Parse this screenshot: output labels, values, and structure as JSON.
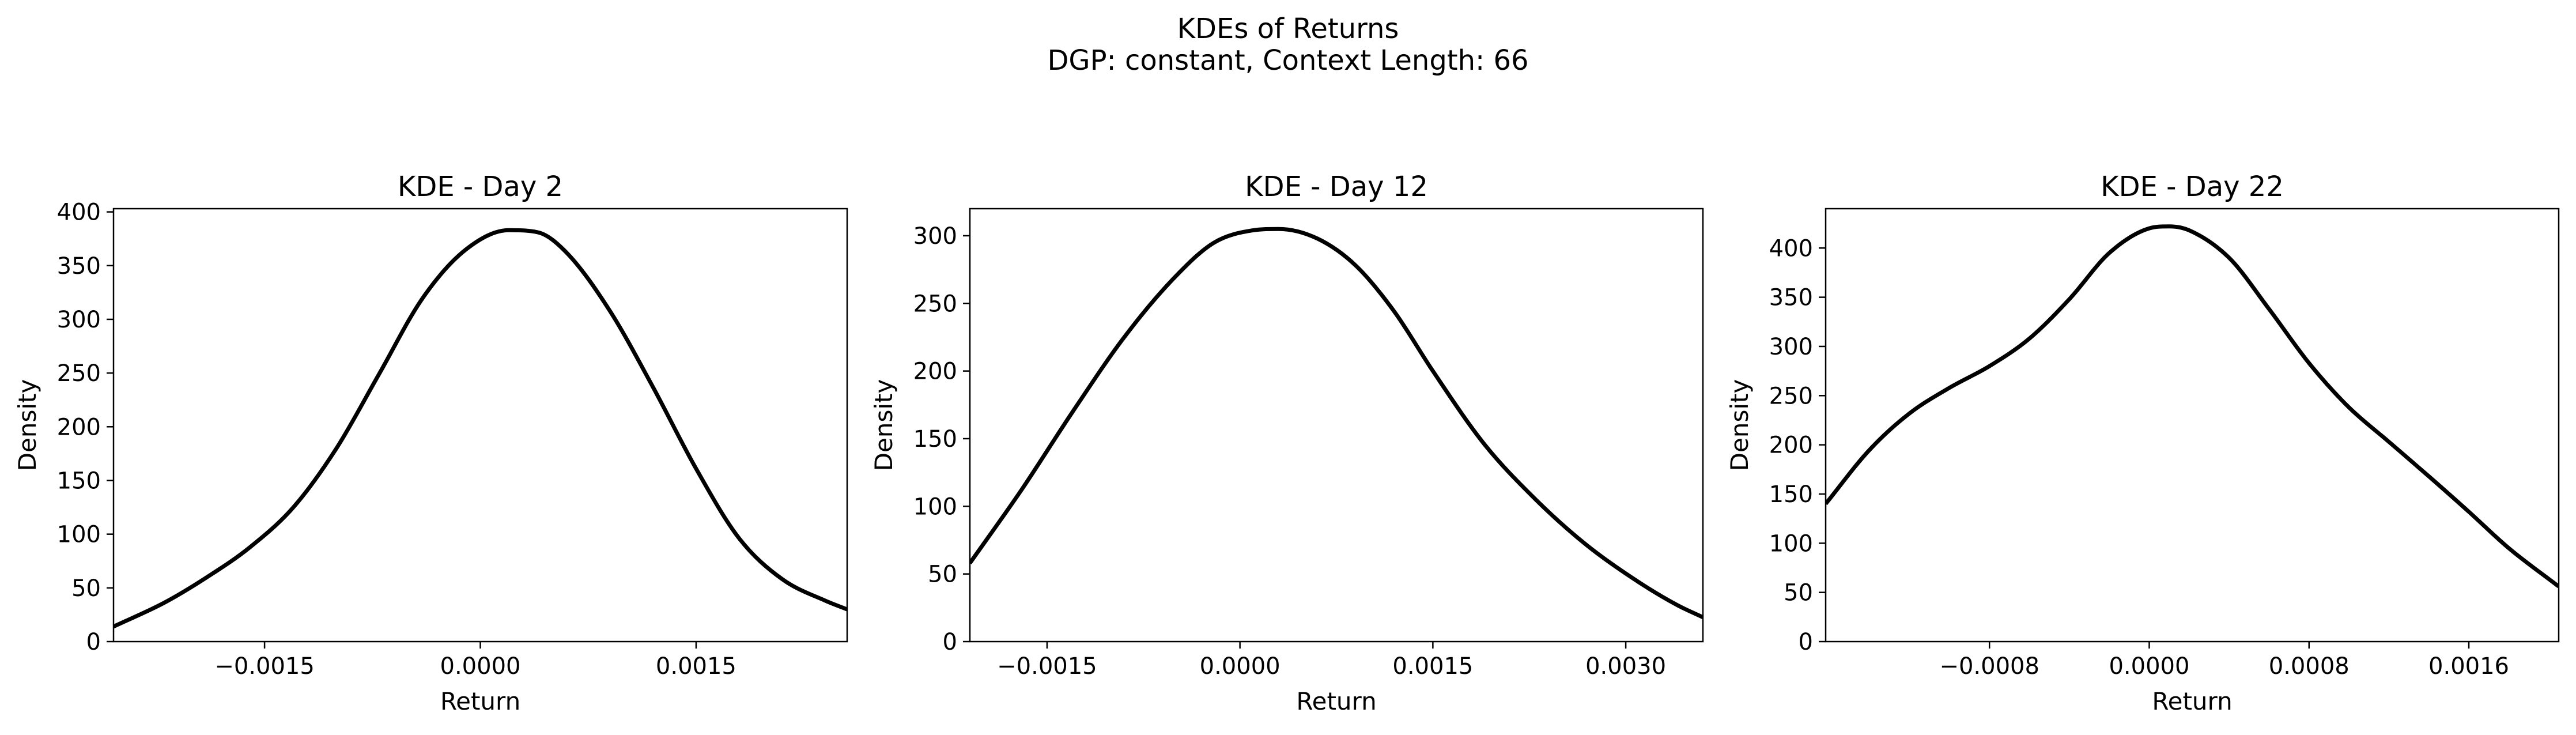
{
  "figure": {
    "title": "KDEs of Returns",
    "subtitle": "DGP: constant, Context Length: 66"
  },
  "chart_data": [
    {
      "type": "line",
      "title": "KDE - Day 2",
      "xlabel": "Return",
      "ylabel": "Density",
      "xlim": [
        -0.00255,
        0.00255
      ],
      "ylim": [
        0,
        403
      ],
      "xticks": [
        -0.0015,
        0.0,
        0.0015
      ],
      "xtick_labels": [
        "−0.0015",
        "0.0000",
        "0.0015"
      ],
      "yticks": [
        0,
        50,
        100,
        150,
        200,
        250,
        300,
        350,
        400
      ],
      "ytick_labels": [
        "0",
        "50",
        "100",
        "150",
        "200",
        "250",
        "300",
        "350",
        "400"
      ],
      "series": [
        {
          "color": "#000000",
          "x": [
            -0.00255,
            -0.0022,
            -0.0019,
            -0.0016,
            -0.0013,
            -0.001,
            -0.0007,
            -0.0004,
            -0.0001,
            0.0002,
            0.0004,
            0.0006,
            0.0009,
            0.0012,
            0.0015,
            0.0018,
            0.0021,
            0.0024,
            0.00255
          ],
          "y": [
            14,
            36,
            60,
            88,
            125,
            180,
            250,
            320,
            365,
            383,
            381,
            362,
            308,
            237,
            161,
            96,
            58,
            38,
            30
          ]
        }
      ]
    },
    {
      "type": "line",
      "title": "KDE - Day 12",
      "xlabel": "Return",
      "ylabel": "Density",
      "xlim": [
        -0.0021,
        0.0036
      ],
      "ylim": [
        0,
        320
      ],
      "xticks": [
        -0.0015,
        0.0,
        0.0015,
        0.003
      ],
      "xtick_labels": [
        "−0.0015",
        "0.0000",
        "0.0015",
        "0.0030"
      ],
      "yticks": [
        0,
        50,
        100,
        150,
        200,
        250,
        300
      ],
      "ytick_labels": [
        "0",
        "50",
        "100",
        "150",
        "200",
        "250",
        "300"
      ],
      "series": [
        {
          "color": "#000000",
          "x": [
            -0.0021,
            -0.0017,
            -0.0013,
            -0.0009,
            -0.0005,
            -0.0002,
            0.0001,
            0.0003,
            0.0006,
            0.0009,
            0.0012,
            0.0015,
            0.0019,
            0.0023,
            0.0027,
            0.0031,
            0.0034,
            0.0036
          ],
          "y": [
            58,
            112,
            170,
            225,
            270,
            295,
            304,
            305,
            298,
            278,
            244,
            200,
            146,
            105,
            71,
            44,
            27,
            18
          ]
        }
      ]
    },
    {
      "type": "line",
      "title": "KDE - Day 22",
      "xlabel": "Return",
      "ylabel": "Density",
      "xlim": [
        -0.00162,
        0.00205
      ],
      "ylim": [
        0,
        440
      ],
      "xticks": [
        -0.0008,
        0.0,
        0.0008,
        0.0016
      ],
      "xtick_labels": [
        "−0.0008",
        "0.0000",
        "0.0008",
        "0.0016"
      ],
      "yticks": [
        0,
        50,
        100,
        150,
        200,
        250,
        300,
        350,
        400
      ],
      "ytick_labels": [
        "0",
        "50",
        "100",
        "150",
        "200",
        "250",
        "300",
        "350",
        "400"
      ],
      "series": [
        {
          "color": "#000000",
          "x": [
            -0.00162,
            -0.0014,
            -0.0012,
            -0.001,
            -0.0008,
            -0.0006,
            -0.0004,
            -0.0002,
            0.0,
            0.0001,
            0.0002,
            0.0004,
            0.0006,
            0.0008,
            0.001,
            0.0012,
            0.0014,
            0.0016,
            0.0018,
            0.00205
          ],
          "y": [
            140,
            195,
            232,
            258,
            280,
            308,
            348,
            395,
            420,
            422,
            418,
            390,
            338,
            283,
            238,
            203,
            168,
            132,
            95,
            56
          ]
        }
      ]
    }
  ]
}
